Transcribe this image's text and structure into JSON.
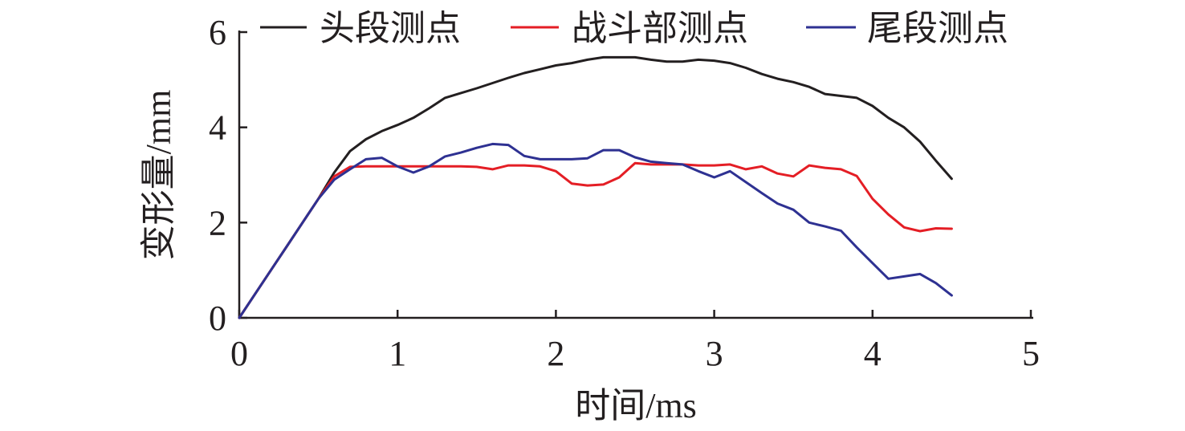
{
  "chart_data": {
    "type": "line",
    "xlabel": "时间/ms",
    "ylabel": "变形量/mm",
    "xlim": [
      0,
      5
    ],
    "ylim": [
      0,
      6
    ],
    "xticks": [
      "0",
      "1",
      "2",
      "3",
      "4",
      "5"
    ],
    "yticks": [
      "0",
      "2",
      "4",
      "6"
    ],
    "grid": false,
    "legend_position": "top",
    "series": [
      {
        "name": "头段测点",
        "color": "#231f20",
        "x": [
          0,
          0.1,
          0.2,
          0.3,
          0.4,
          0.5,
          0.6,
          0.7,
          0.8,
          0.9,
          1.0,
          1.1,
          1.2,
          1.3,
          1.4,
          1.5,
          1.6,
          1.7,
          1.8,
          1.9,
          2.0,
          2.1,
          2.2,
          2.3,
          2.4,
          2.5,
          2.6,
          2.7,
          2.8,
          2.9,
          3.0,
          3.1,
          3.2,
          3.3,
          3.4,
          3.5,
          3.6,
          3.7,
          3.8,
          3.9,
          4.0,
          4.1,
          4.2,
          4.3,
          4.4,
          4.5
        ],
        "y": [
          0,
          0.5,
          1.0,
          1.5,
          2.0,
          2.5,
          3.05,
          3.5,
          3.75,
          3.92,
          4.05,
          4.2,
          4.4,
          4.62,
          4.72,
          4.82,
          4.93,
          5.04,
          5.14,
          5.22,
          5.3,
          5.35,
          5.42,
          5.47,
          5.47,
          5.47,
          5.42,
          5.38,
          5.38,
          5.42,
          5.4,
          5.35,
          5.25,
          5.12,
          5.02,
          4.95,
          4.85,
          4.7,
          4.66,
          4.62,
          4.45,
          4.2,
          4.0,
          3.7,
          3.3,
          2.92
        ]
      },
      {
        "name": "战斗部测点",
        "color": "#e41e25",
        "x": [
          0,
          0.1,
          0.2,
          0.3,
          0.4,
          0.5,
          0.6,
          0.7,
          0.8,
          0.9,
          1.0,
          1.1,
          1.2,
          1.3,
          1.4,
          1.5,
          1.6,
          1.7,
          1.8,
          1.9,
          2.0,
          2.1,
          2.2,
          2.3,
          2.4,
          2.5,
          2.6,
          2.7,
          2.8,
          2.9,
          3.0,
          3.1,
          3.2,
          3.3,
          3.4,
          3.5,
          3.6,
          3.7,
          3.8,
          3.9,
          4.0,
          4.1,
          4.2,
          4.3,
          4.4,
          4.5
        ],
        "y": [
          0,
          0.5,
          1.0,
          1.5,
          2.0,
          2.5,
          2.97,
          3.17,
          3.18,
          3.18,
          3.18,
          3.18,
          3.18,
          3.18,
          3.18,
          3.17,
          3.12,
          3.2,
          3.2,
          3.18,
          3.08,
          2.82,
          2.78,
          2.8,
          2.95,
          3.25,
          3.22,
          3.22,
          3.22,
          3.2,
          3.2,
          3.22,
          3.12,
          3.18,
          3.03,
          2.97,
          3.2,
          3.15,
          3.12,
          2.98,
          2.5,
          2.17,
          1.9,
          1.82,
          1.88,
          1.87
        ]
      },
      {
        "name": "尾段测点",
        "color": "#2e3192",
        "x": [
          0,
          0.1,
          0.2,
          0.3,
          0.4,
          0.5,
          0.6,
          0.7,
          0.8,
          0.9,
          1.0,
          1.1,
          1.2,
          1.3,
          1.4,
          1.5,
          1.6,
          1.7,
          1.8,
          1.9,
          2.0,
          2.1,
          2.2,
          2.3,
          2.4,
          2.5,
          2.6,
          2.7,
          2.8,
          2.9,
          3.0,
          3.1,
          3.2,
          3.3,
          3.4,
          3.5,
          3.6,
          3.7,
          3.8,
          3.9,
          4.0,
          4.1,
          4.2,
          4.3,
          4.4,
          4.5
        ],
        "y": [
          0,
          0.5,
          1.0,
          1.5,
          2.0,
          2.5,
          2.9,
          3.12,
          3.33,
          3.36,
          3.18,
          3.05,
          3.18,
          3.39,
          3.47,
          3.57,
          3.65,
          3.63,
          3.4,
          3.33,
          3.33,
          3.33,
          3.35,
          3.52,
          3.52,
          3.37,
          3.28,
          3.25,
          3.22,
          3.08,
          2.95,
          3.08,
          2.85,
          2.62,
          2.4,
          2.27,
          2.0,
          1.92,
          1.83,
          1.48,
          1.15,
          0.82,
          0.87,
          0.92,
          0.73,
          0.47
        ]
      }
    ]
  }
}
